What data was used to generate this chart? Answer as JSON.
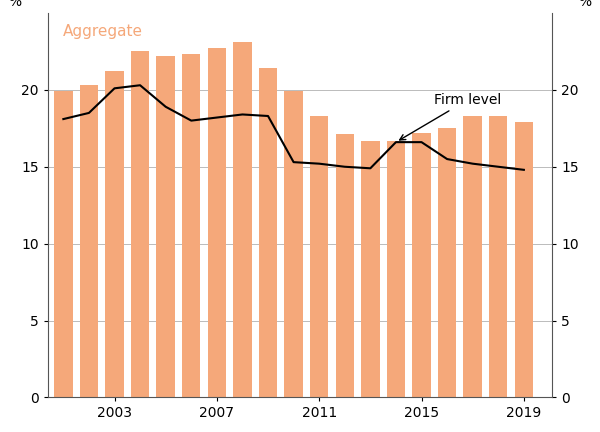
{
  "years": [
    2001,
    2002,
    2003,
    2004,
    2005,
    2006,
    2007,
    2008,
    2009,
    2010,
    2011,
    2012,
    2013,
    2014,
    2015,
    2016,
    2017,
    2018,
    2019
  ],
  "bar_values": [
    19.9,
    20.3,
    21.2,
    22.5,
    22.2,
    22.3,
    22.7,
    23.1,
    21.4,
    19.9,
    18.3,
    17.1,
    16.7,
    16.7,
    17.2,
    17.5,
    18.3,
    18.3,
    17.9
  ],
  "line_values": [
    18.1,
    18.5,
    20.1,
    20.3,
    18.9,
    18.0,
    18.2,
    18.4,
    18.3,
    15.3,
    15.2,
    15.0,
    14.9,
    16.6,
    16.6,
    15.5,
    15.2,
    15.0,
    14.8
  ],
  "bar_color": "#F5A87A",
  "line_color": "#000000",
  "aggregate_label_color": "#F5A87A",
  "aggregate_label": "Aggregate",
  "firm_level_label": "Firm level",
  "ylabel_left": "%",
  "ylabel_right": "%",
  "ylim": [
    0,
    25
  ],
  "yticks": [
    0,
    5,
    10,
    15,
    20
  ],
  "xlim": [
    2000.4,
    2020.1
  ],
  "xticks": [
    2003,
    2007,
    2011,
    2015,
    2019
  ],
  "annotation_year": 2014,
  "annotation_value": 16.6,
  "annotation_text": "Firm level",
  "grid_color": "#bbbbbb",
  "background_color": "#ffffff",
  "bar_width": 0.72
}
